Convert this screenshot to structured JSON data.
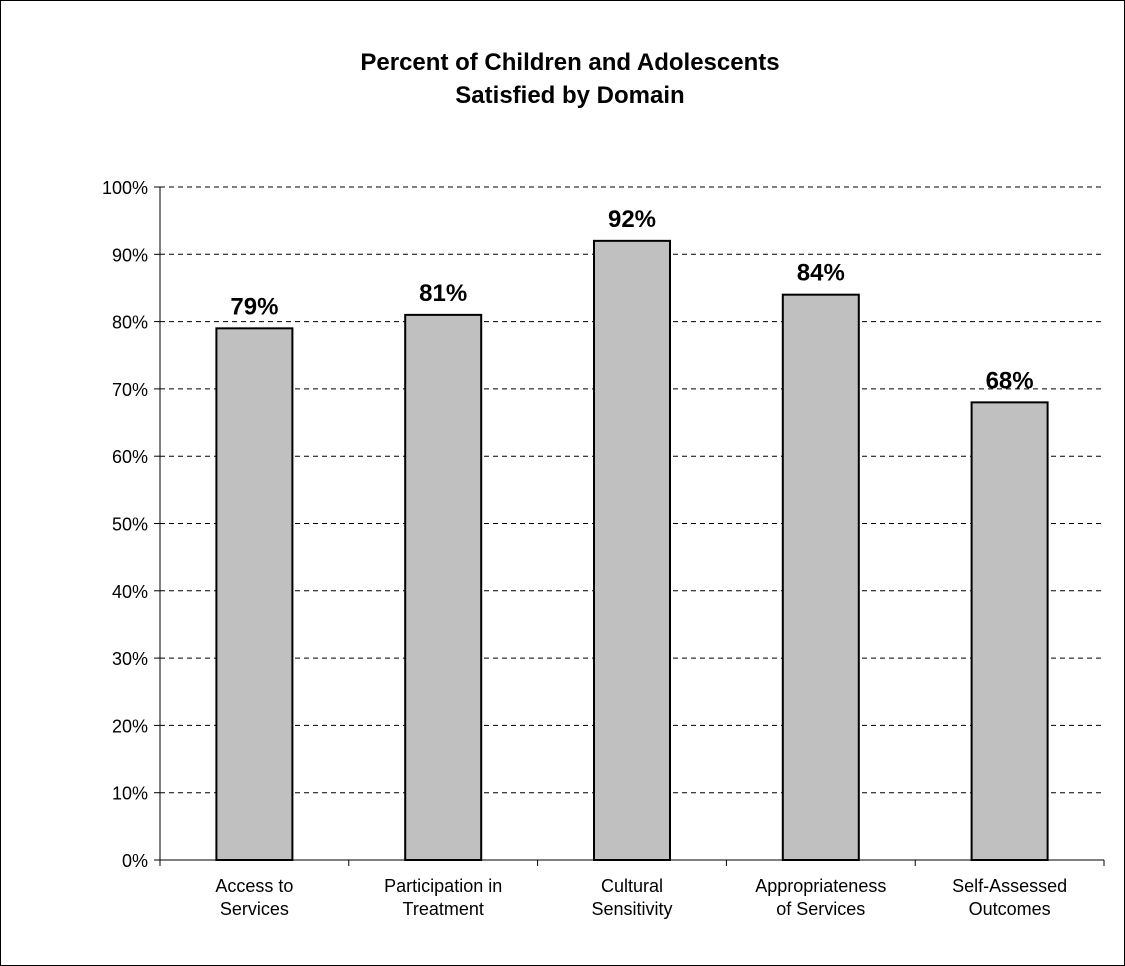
{
  "chart_data": {
    "type": "bar",
    "title": [
      "Percent of Children and Adolescents",
      "Satisfied by Domain"
    ],
    "categories": [
      [
        "Access to",
        "Services"
      ],
      [
        "Participation in",
        "Treatment"
      ],
      [
        "Cultural",
        "Sensitivity"
      ],
      [
        "Appropriateness",
        "of Services"
      ],
      [
        "Self-Assessed",
        "Outcomes"
      ]
    ],
    "values": [
      79,
      81,
      92,
      84,
      68
    ],
    "data_labels": [
      "79%",
      "81%",
      "92%",
      "84%",
      "68%"
    ],
    "ylim": [
      0,
      100
    ],
    "yticks": [
      "0%",
      "10%",
      "20%",
      "30%",
      "40%",
      "50%",
      "60%",
      "70%",
      "80%",
      "90%",
      "100%"
    ],
    "grid": "dashed horizontal",
    "legend": "none",
    "bar_color": "#c0c0c0",
    "bar_edge_color": "#000000"
  }
}
